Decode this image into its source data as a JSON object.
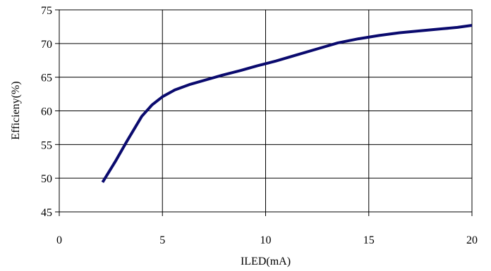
{
  "chart_data": {
    "type": "line",
    "title": "",
    "xlabel": "ILED(mA)",
    "ylabel": "Efficieny(%)",
    "xlim": [
      0,
      20
    ],
    "ylim": [
      45,
      75
    ],
    "x_ticks": [
      0,
      5,
      10,
      15,
      20
    ],
    "y_ticks": [
      45,
      50,
      55,
      60,
      65,
      70,
      75
    ],
    "grid": true,
    "legend": "none",
    "series": [
      {
        "color": "#0a0a6e",
        "x": [
          2.1,
          2.7,
          3.3,
          4.0,
          4.5,
          5.0,
          5.6,
          6.3,
          7.1,
          7.9,
          8.8,
          9.6,
          10.5,
          11.5,
          12.5,
          13.5,
          14.5,
          15.5,
          16.5,
          17.5,
          18.6,
          19.3,
          20.0
        ],
        "y": [
          49.4,
          52.4,
          55.6,
          59.2,
          60.9,
          62.1,
          63.1,
          63.9,
          64.6,
          65.3,
          66.0,
          66.7,
          67.4,
          68.3,
          69.2,
          70.1,
          70.7,
          71.2,
          71.6,
          71.9,
          72.2,
          72.4,
          72.7
        ]
      }
    ]
  }
}
